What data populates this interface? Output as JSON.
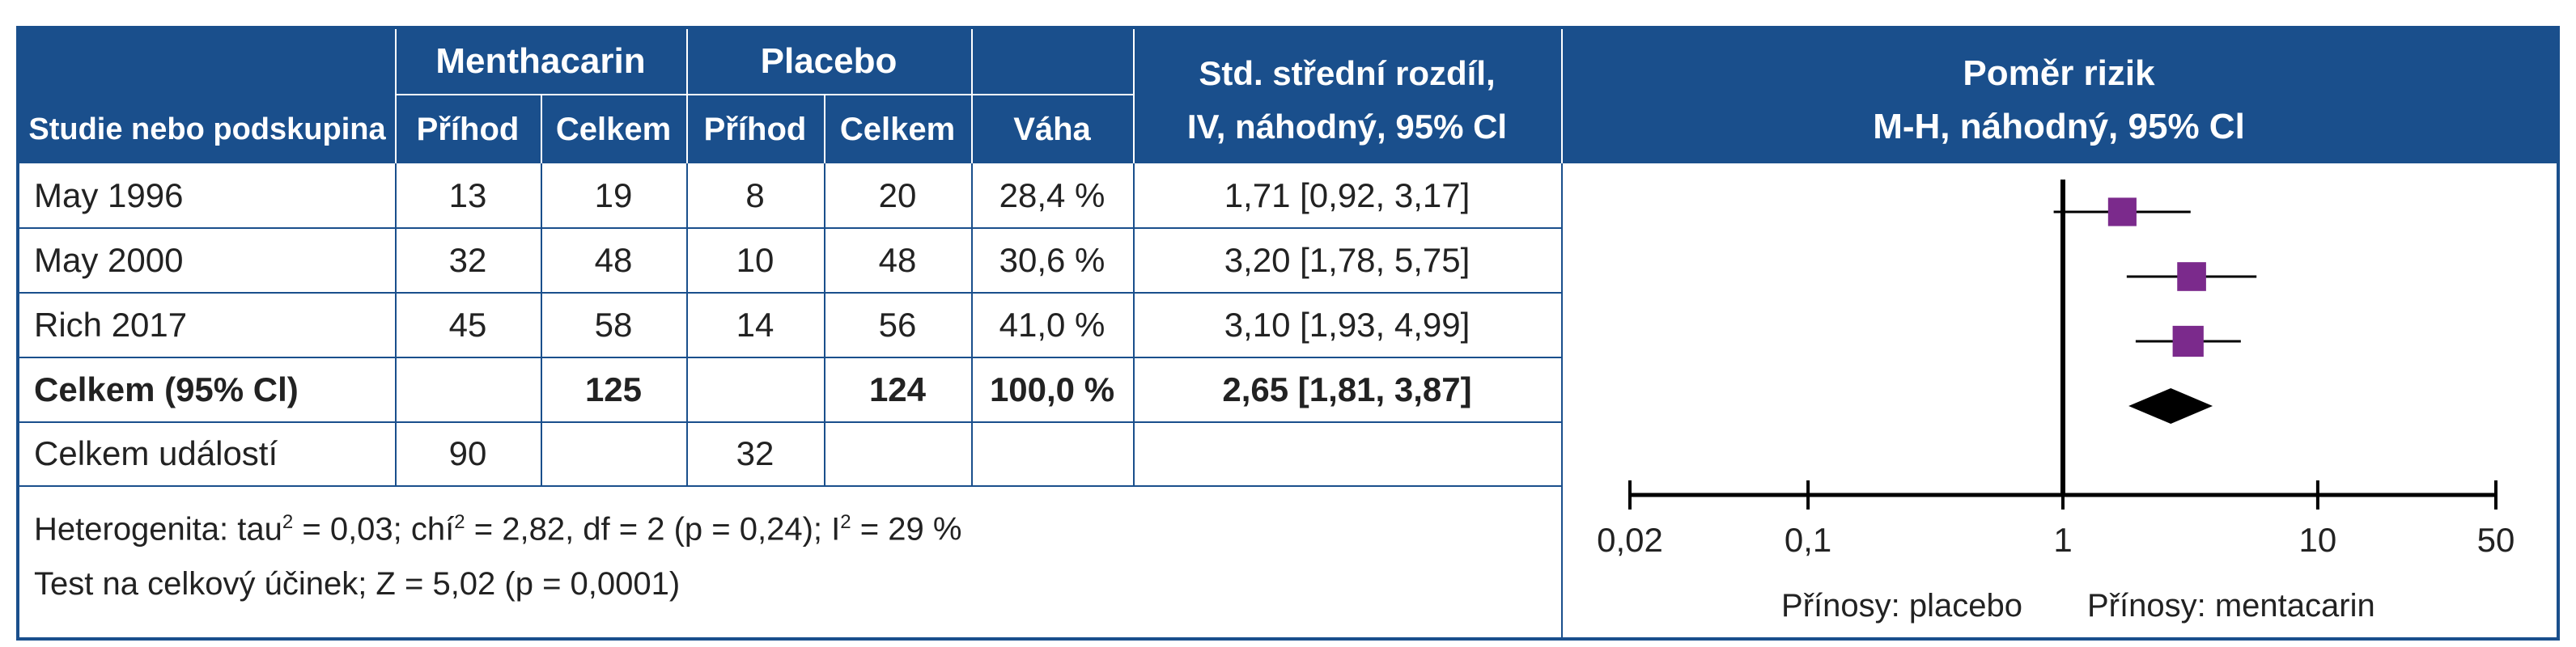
{
  "colors": {
    "header_bg": "#1a4f8c",
    "marker": "#7b2a8c",
    "diamond": "#000000"
  },
  "table": {
    "group_headers": {
      "experimental": "Menthacarin",
      "control": "Placebo"
    },
    "columns": {
      "study": "Studie nebo podskupina",
      "events_exp": "Příhod",
      "total_exp": "Celkem",
      "events_ctl": "Příhod",
      "total_ctl": "Celkem",
      "weight": "Váha",
      "effect_line1": "Std. střední rozdíl,",
      "effect_line2": "IV, náhodný, 95% Cl"
    },
    "plot_header_line1": "Poměr rizik",
    "plot_header_line2": "M-H, náhodný, 95% Cl",
    "rows": [
      {
        "study": "May 1996",
        "events_exp": "13",
        "total_exp": "19",
        "events_ctl": "8",
        "total_ctl": "20",
        "weight": "28,4 %",
        "effect": "1,71 [0,92, 3,17]"
      },
      {
        "study": "May 2000",
        "events_exp": "32",
        "total_exp": "48",
        "events_ctl": "10",
        "total_ctl": "48",
        "weight": "30,6 %",
        "effect": "3,20 [1,78, 5,75]"
      },
      {
        "study": "Rich 2017",
        "events_exp": "45",
        "total_exp": "58",
        "events_ctl": "14",
        "total_ctl": "56",
        "weight": "41,0 %",
        "effect": "3,10 [1,93, 4,99]"
      }
    ],
    "total": {
      "study": "Celkem (95% Cl)",
      "total_exp": "125",
      "total_ctl": "124",
      "weight": "100,0 %",
      "effect": "2,65 [1,81, 3,87]"
    },
    "events_total": {
      "study": "Celkem událostí",
      "events_exp": "90",
      "events_ctl": "32"
    },
    "heterogeneity_a": "Heterogenita: tau",
    "heterogeneity_b": " = 0,03; chí",
    "heterogeneity_c": " = 2,82, df = 2 (p = 0,24); I",
    "heterogeneity_d": " = 29 %",
    "superscript_2": "2",
    "overall_test": "Test na celkový účinek; Z = 5,02 (p = 0,0001)"
  },
  "chart_data": {
    "type": "forest",
    "scale": "log",
    "xlim": [
      0.02,
      50
    ],
    "xticks": [
      0.02,
      0.1,
      1,
      10,
      50
    ],
    "xtick_labels": [
      "0,02",
      "0,1",
      "1",
      "10",
      "50"
    ],
    "reference_line": 1,
    "studies": [
      {
        "name": "May 1996",
        "estimate": 1.71,
        "ci_low": 0.92,
        "ci_high": 3.17,
        "weight": 28.4
      },
      {
        "name": "May 2000",
        "estimate": 3.2,
        "ci_low": 1.78,
        "ci_high": 5.75,
        "weight": 30.6
      },
      {
        "name": "Rich 2017",
        "estimate": 3.1,
        "ci_low": 1.93,
        "ci_high": 4.99,
        "weight": 41.0
      }
    ],
    "pooled": {
      "estimate": 2.65,
      "ci_low": 1.81,
      "ci_high": 3.87
    },
    "favours_left": "Přínosy: placebo",
    "favours_right": "Přínosy: mentacarin"
  }
}
